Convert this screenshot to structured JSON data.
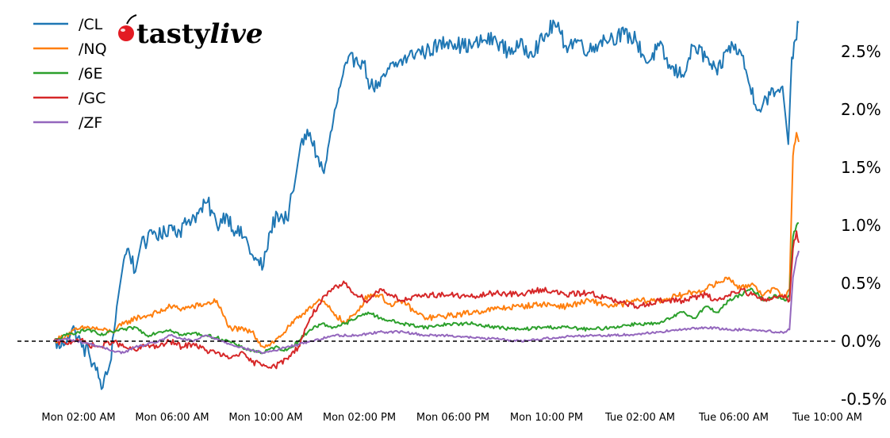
{
  "brand": {
    "logo_text_main": "tasty",
    "logo_text_accent": "live",
    "logo_icon": "cherry-icon",
    "cherry_color": "#e31b23"
  },
  "chart_data": {
    "type": "line",
    "title": "",
    "xlabel": "",
    "ylabel": "",
    "x_range_hours": [
      0,
      32
    ],
    "ylim": [
      -0.5,
      2.78
    ],
    "y_axis_position": "right",
    "y_tick_values": [
      -0.5,
      0.0,
      0.5,
      1.0,
      1.5,
      2.0,
      2.5
    ],
    "y_tick_labels": [
      "-0.5%",
      "0.0%",
      "0.5%",
      "1.0%",
      "1.5%",
      "2.0%",
      "2.5%"
    ],
    "x_tick_values": [
      2,
      6,
      10,
      14,
      18,
      22,
      26,
      30,
      34
    ],
    "x_tick_labels": [
      "Mon 02:00 AM",
      "Mon 06:00 AM",
      "Mon 10:00 AM",
      "Mon 02:00 PM",
      "Mon 06:00 PM",
      "Mon 10:00 PM",
      "Tue 02:00 AM",
      "Tue 06:00 AM",
      "Tue 10:00 AM"
    ],
    "baseline": {
      "value": 0.0,
      "style": "dashed",
      "color": "#000000"
    },
    "grid": false,
    "legend_placement": "top-left",
    "series": [
      {
        "name": "/CL",
        "color": "#1f77b4",
        "x": [
          0,
          0.3,
          0.6,
          0.9,
          1.2,
          1.5,
          1.8,
          2.1,
          2.4,
          2.7,
          3.0,
          3.2,
          3.5,
          3.8,
          4.0,
          4.3,
          4.6,
          5.0,
          5.4,
          5.8,
          6.2,
          6.6,
          7.0,
          7.4,
          7.8,
          8.2,
          8.6,
          9.0,
          9.3,
          9.6,
          10.0,
          10.3,
          10.6,
          11.0,
          11.3,
          11.6,
          12.0,
          12.3,
          12.6,
          13.0,
          13.3,
          13.6,
          14.0,
          14.4,
          14.8,
          15.2,
          15.6,
          16.0,
          16.5,
          17.0,
          17.5,
          18.0,
          18.5,
          19.0,
          19.5,
          20.0,
          20.5,
          21.0,
          21.5,
          22.0,
          22.5,
          23.0,
          23.5,
          24.0,
          24.5,
          25.0,
          25.5,
          26.0,
          26.5,
          27.0,
          27.5,
          28.0,
          28.5,
          29.0,
          29.5,
          29.9,
          30.3,
          30.6,
          31.0,
          31.3,
          31.55,
          31.7,
          31.85,
          32.0
        ],
        "y": [
          0.0,
          -0.05,
          0.05,
          0.1,
          -0.05,
          -0.1,
          -0.25,
          -0.4,
          -0.2,
          0.3,
          0.7,
          0.8,
          0.6,
          0.9,
          0.85,
          0.95,
          0.9,
          1.0,
          0.95,
          1.05,
          1.1,
          1.2,
          1.0,
          1.1,
          0.95,
          0.9,
          0.7,
          0.65,
          0.95,
          1.1,
          1.05,
          1.3,
          1.7,
          1.8,
          1.6,
          1.45,
          1.9,
          2.2,
          2.4,
          2.45,
          2.4,
          2.2,
          2.2,
          2.35,
          2.4,
          2.45,
          2.5,
          2.5,
          2.55,
          2.6,
          2.55,
          2.55,
          2.6,
          2.6,
          2.5,
          2.55,
          2.5,
          2.6,
          2.75,
          2.55,
          2.6,
          2.5,
          2.6,
          2.62,
          2.65,
          2.6,
          2.4,
          2.55,
          2.35,
          2.3,
          2.55,
          2.45,
          2.3,
          2.55,
          2.5,
          2.2,
          2.0,
          2.1,
          2.15,
          2.2,
          1.7,
          2.45,
          2.6,
          2.75
        ]
      },
      {
        "name": "/NQ",
        "color": "#ff7f0e",
        "x": [
          0,
          0.5,
          1.0,
          1.5,
          2.0,
          2.5,
          3.0,
          3.5,
          4.0,
          4.5,
          5.0,
          5.5,
          6.0,
          6.5,
          7.0,
          7.5,
          8.0,
          8.5,
          9.0,
          9.5,
          10.0,
          10.5,
          11.0,
          11.5,
          12.0,
          12.5,
          13.0,
          13.5,
          14.0,
          14.5,
          15.0,
          15.5,
          16.0,
          17.0,
          18.0,
          19.0,
          20.0,
          21.0,
          22.0,
          23.0,
          24.0,
          25.0,
          26.0,
          27.0,
          28.0,
          28.5,
          29.0,
          29.5,
          30.0,
          30.5,
          31.0,
          31.4,
          31.6,
          31.75,
          31.9,
          32.0
        ],
        "y": [
          0.0,
          0.05,
          0.1,
          0.12,
          0.1,
          0.08,
          0.15,
          0.2,
          0.22,
          0.25,
          0.3,
          0.28,
          0.3,
          0.32,
          0.35,
          0.12,
          0.1,
          0.08,
          -0.05,
          0.0,
          0.1,
          0.2,
          0.3,
          0.35,
          0.25,
          0.15,
          0.25,
          0.4,
          0.4,
          0.3,
          0.35,
          0.25,
          0.2,
          0.22,
          0.25,
          0.28,
          0.3,
          0.32,
          0.3,
          0.35,
          0.3,
          0.35,
          0.35,
          0.4,
          0.45,
          0.5,
          0.55,
          0.45,
          0.5,
          0.4,
          0.45,
          0.38,
          0.45,
          1.6,
          1.8,
          1.72
        ]
      },
      {
        "name": "/6E",
        "color": "#2ca02c",
        "x": [
          0,
          0.5,
          1.0,
          1.5,
          2.0,
          2.5,
          3.0,
          3.5,
          4.0,
          4.5,
          5.0,
          5.5,
          6.0,
          6.5,
          7.0,
          7.5,
          8.0,
          8.5,
          9.0,
          9.5,
          10.0,
          10.5,
          11.0,
          11.5,
          12.0,
          12.5,
          13.0,
          13.5,
          14.0,
          15.0,
          16.0,
          17.0,
          18.0,
          19.0,
          20.0,
          21.0,
          22.0,
          23.0,
          24.0,
          25.0,
          26.0,
          26.5,
          27.0,
          27.5,
          28.0,
          28.5,
          29.0,
          29.5,
          30.0,
          30.5,
          31.0,
          31.4,
          31.6,
          31.75,
          31.9,
          32.0
        ],
        "y": [
          0.0,
          0.05,
          0.08,
          0.1,
          0.05,
          0.08,
          0.1,
          0.12,
          0.05,
          0.08,
          0.1,
          0.05,
          0.07,
          0.05,
          0.03,
          0.0,
          -0.05,
          -0.08,
          -0.1,
          -0.05,
          -0.08,
          0.0,
          0.1,
          0.15,
          0.12,
          0.15,
          0.2,
          0.25,
          0.2,
          0.15,
          0.12,
          0.15,
          0.15,
          0.12,
          0.1,
          0.12,
          0.12,
          0.1,
          0.12,
          0.15,
          0.15,
          0.2,
          0.25,
          0.2,
          0.3,
          0.25,
          0.35,
          0.4,
          0.45,
          0.35,
          0.4,
          0.35,
          0.4,
          0.9,
          1.0,
          1.02
        ]
      },
      {
        "name": "/GC",
        "color": "#d62728",
        "x": [
          0,
          0.5,
          1.0,
          1.5,
          2.0,
          2.5,
          3.0,
          3.5,
          4.0,
          4.5,
          5.0,
          5.5,
          6.0,
          6.5,
          7.0,
          7.5,
          8.0,
          8.5,
          9.0,
          9.5,
          10.0,
          10.5,
          11.0,
          11.5,
          12.0,
          12.5,
          13.0,
          13.5,
          14.0,
          14.5,
          15.0,
          16.0,
          17.0,
          18.0,
          19.0,
          20.0,
          21.0,
          22.0,
          23.0,
          24.0,
          25.0,
          26.0,
          27.0,
          28.0,
          28.5,
          29.0,
          29.5,
          30.0,
          30.5,
          31.0,
          31.4,
          31.6,
          31.75,
          31.9,
          32.0
        ],
        "y": [
          0.0,
          -0.02,
          0.02,
          -0.03,
          -0.05,
          0.0,
          -0.05,
          -0.08,
          -0.03,
          -0.05,
          0.0,
          -0.05,
          -0.02,
          -0.08,
          -0.1,
          -0.15,
          -0.1,
          -0.18,
          -0.2,
          -0.22,
          -0.15,
          -0.05,
          0.2,
          0.35,
          0.45,
          0.5,
          0.4,
          0.35,
          0.45,
          0.4,
          0.35,
          0.4,
          0.4,
          0.38,
          0.42,
          0.4,
          0.45,
          0.4,
          0.42,
          0.35,
          0.3,
          0.35,
          0.35,
          0.4,
          0.35,
          0.4,
          0.45,
          0.4,
          0.35,
          0.38,
          0.4,
          0.35,
          0.8,
          0.95,
          0.85
        ]
      },
      {
        "name": "/ZF",
        "color": "#9467bd",
        "x": [
          0,
          0.5,
          1.0,
          1.5,
          2.0,
          2.5,
          3.0,
          3.5,
          4.0,
          4.5,
          5.0,
          5.5,
          6.0,
          6.5,
          7.0,
          7.5,
          8.0,
          8.5,
          9.0,
          9.5,
          10.0,
          10.5,
          11.0,
          11.5,
          12.0,
          13.0,
          14.0,
          15.0,
          16.0,
          17.0,
          18.0,
          19.0,
          20.0,
          21.0,
          22.0,
          23.0,
          24.0,
          25.0,
          26.0,
          27.0,
          28.0,
          29.0,
          30.0,
          31.0,
          31.4,
          31.6,
          31.75,
          31.9,
          32.0
        ],
        "y": [
          0.0,
          0.02,
          0.0,
          -0.02,
          -0.05,
          -0.08,
          -0.1,
          -0.05,
          -0.03,
          0.0,
          0.05,
          0.02,
          0.0,
          0.05,
          0.02,
          -0.02,
          -0.05,
          -0.08,
          -0.1,
          -0.08,
          -0.05,
          -0.03,
          0.0,
          0.02,
          0.05,
          0.05,
          0.08,
          0.08,
          0.05,
          0.05,
          0.03,
          0.02,
          0.0,
          0.02,
          0.04,
          0.05,
          0.05,
          0.06,
          0.08,
          0.1,
          0.12,
          0.1,
          0.1,
          0.08,
          0.08,
          0.1,
          0.55,
          0.72,
          0.78
        ]
      }
    ]
  }
}
